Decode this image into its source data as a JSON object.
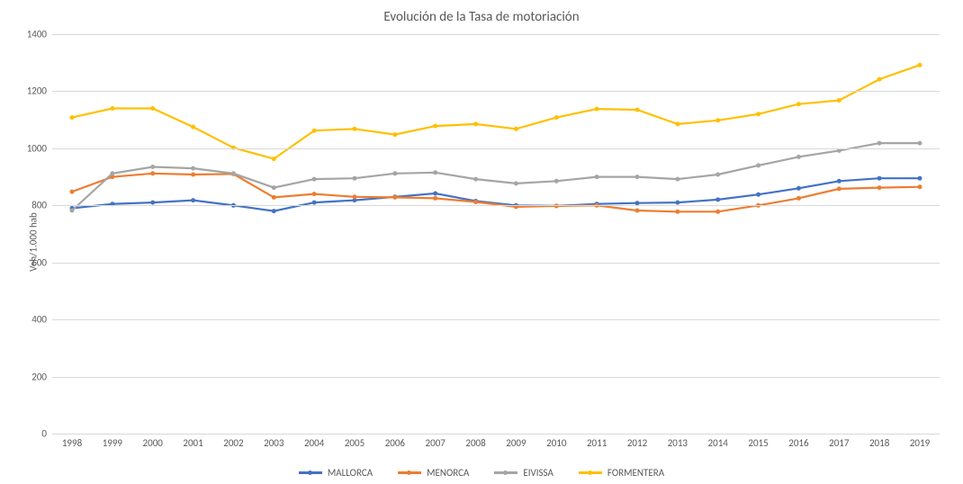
{
  "chart": {
    "type": "line",
    "title": "Evolución de la Tasa de motoriación",
    "title_fontsize": 15,
    "title_color": "#595959",
    "ylabel": "Veh/1.000 hab",
    "label_fontsize": 11,
    "label_color": "#595959",
    "background_color": "#ffffff",
    "grid_color": "#d9d9d9",
    "axis_color": "#d9d9d9",
    "ylim": [
      0,
      1400
    ],
    "ytick_step": 200,
    "yticks": [
      0,
      200,
      400,
      600,
      800,
      1000,
      1200,
      1400
    ],
    "categories": [
      "1998",
      "1999",
      "2000",
      "2001",
      "2002",
      "2003",
      "2004",
      "2005",
      "2006",
      "2007",
      "2008",
      "2009",
      "2010",
      "2011",
      "2012",
      "2013",
      "2014",
      "2015",
      "2016",
      "2017",
      "2018",
      "2019"
    ],
    "line_width": 2.2,
    "marker_size": 5,
    "marker_style": "circle",
    "series": [
      {
        "name": "MALLORCA",
        "color": "#4472c4",
        "values": [
          790,
          805,
          810,
          818,
          800,
          780,
          810,
          818,
          830,
          842,
          815,
          800,
          798,
          805,
          808,
          810,
          820,
          838,
          860,
          885,
          895,
          895
        ]
      },
      {
        "name": "MENORCA",
        "color": "#ed7d31",
        "values": [
          848,
          900,
          912,
          908,
          910,
          828,
          840,
          830,
          828,
          825,
          812,
          795,
          798,
          800,
          782,
          778,
          778,
          800,
          825,
          858,
          862,
          865
        ]
      },
      {
        "name": "EIVISSA",
        "color": "#a5a5a5",
        "values": [
          782,
          912,
          935,
          930,
          912,
          862,
          892,
          895,
          912,
          915,
          892,
          877,
          885,
          900,
          900,
          892,
          908,
          940,
          970,
          992,
          1018,
          1018
        ]
      },
      {
        "name": "FORMENTERA",
        "color": "#ffc000",
        "values": [
          1108,
          1140,
          1140,
          1075,
          1002,
          963,
          1062,
          1068,
          1048,
          1078,
          1085,
          1068,
          1108,
          1138,
          1135,
          1085,
          1098,
          1120,
          1155,
          1168,
          1242,
          1292
        ]
      }
    ],
    "legend_position": "bottom"
  }
}
